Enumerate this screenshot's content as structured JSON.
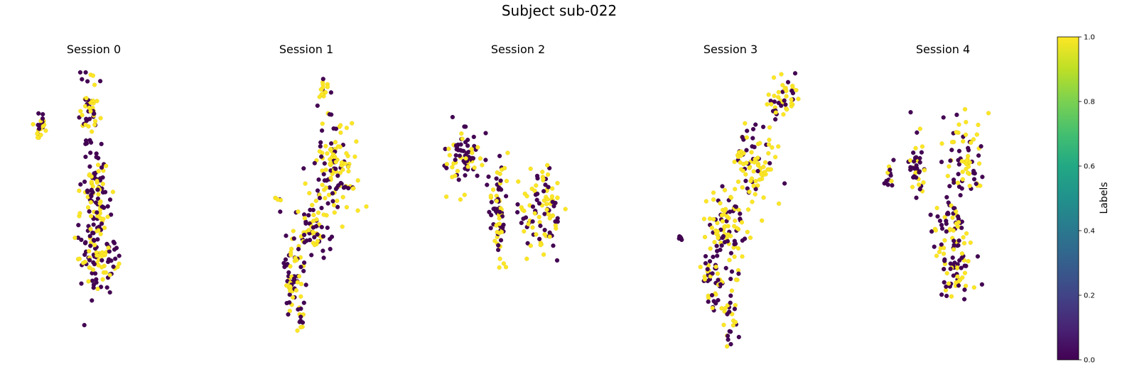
{
  "title": "Subject sub-022",
  "colors": {
    "label_0": "#440154",
    "label_1": "#fde725",
    "edge": "#3b3b3b"
  },
  "colorbar": {
    "label": "Labels",
    "ticks": [
      "0.0",
      "0.2",
      "0.4",
      "0.6",
      "0.8",
      "1.0"
    ],
    "tick_values": [
      0.0,
      0.2,
      0.4,
      0.6,
      0.8,
      1.0
    ],
    "colormap": "viridis"
  },
  "chart_data": [
    {
      "type": "scatter",
      "title": "Session 0",
      "axes": "off",
      "xlim": [
        0,
        10
      ],
      "ylim": [
        0,
        10
      ],
      "clusters": [
        {
          "cx": 1.3,
          "cy": 8.1,
          "sx": 0.22,
          "sy": 0.35,
          "n": 24,
          "yellow": 0.5
        },
        {
          "cx": 4.9,
          "cy": 8.6,
          "sx": 0.45,
          "sy": 0.9,
          "n": 55,
          "yellow": 0.45
        },
        {
          "cx": 5.2,
          "cy": 5.5,
          "sx": 0.6,
          "sy": 1.0,
          "n": 95,
          "yellow": 0.45
        },
        {
          "cx": 5.4,
          "cy": 3.2,
          "sx": 0.9,
          "sy": 0.9,
          "n": 100,
          "yellow": 0.5
        }
      ]
    },
    {
      "type": "scatter",
      "title": "Session 1",
      "axes": "off",
      "xlim": [
        0,
        10
      ],
      "ylim": [
        0,
        10
      ],
      "clusters": [
        {
          "cx": 6.3,
          "cy": 9.3,
          "sx": 0.25,
          "sy": 0.25,
          "n": 16,
          "yellow": 0.75
        },
        {
          "cx": 3.1,
          "cy": 5.3,
          "sx": 0.2,
          "sy": 0.2,
          "n": 6,
          "yellow": 0.6
        },
        {
          "cx": 7.1,
          "cy": 6.6,
          "sx": 1.0,
          "sy": 0.9,
          "n": 120,
          "yellow": 0.5
        },
        {
          "cx": 5.4,
          "cy": 4.3,
          "sx": 0.8,
          "sy": 0.8,
          "n": 70,
          "yellow": 0.5
        },
        {
          "cx": 4.1,
          "cy": 2.5,
          "sx": 0.5,
          "sy": 0.8,
          "n": 60,
          "yellow": 0.55
        },
        {
          "cx": 4.5,
          "cy": 1.1,
          "sx": 0.3,
          "sy": 0.35,
          "n": 14,
          "yellow": 0.5
        }
      ]
    },
    {
      "type": "scatter",
      "title": "Session 2",
      "axes": "off",
      "xlim": [
        0,
        10
      ],
      "ylim": [
        0,
        10
      ],
      "clusters": [
        {
          "cx": 2.0,
          "cy": 6.9,
          "sx": 0.8,
          "sy": 0.7,
          "n": 75,
          "yellow": 0.45
        },
        {
          "cx": 4.6,
          "cy": 4.9,
          "sx": 0.4,
          "sy": 1.1,
          "n": 75,
          "yellow": 0.5
        },
        {
          "cx": 7.5,
          "cy": 5.0,
          "sx": 0.9,
          "sy": 0.9,
          "n": 100,
          "yellow": 0.55
        }
      ]
    },
    {
      "type": "scatter",
      "title": "Session 3",
      "axes": "off",
      "xlim": [
        0,
        10
      ],
      "ylim": [
        0,
        10
      ],
      "clusters": [
        {
          "cx": 8.6,
          "cy": 9.1,
          "sx": 0.6,
          "sy": 0.55,
          "n": 45,
          "yellow": 0.6
        },
        {
          "cx": 6.6,
          "cy": 6.6,
          "sx": 0.9,
          "sy": 1.0,
          "n": 90,
          "yellow": 0.6
        },
        {
          "cx": 4.6,
          "cy": 4.2,
          "sx": 0.9,
          "sy": 1.0,
          "n": 100,
          "yellow": 0.5
        },
        {
          "cx": 3.6,
          "cy": 2.3,
          "sx": 0.5,
          "sy": 0.7,
          "n": 45,
          "yellow": 0.45
        },
        {
          "cx": 4.8,
          "cy": 0.9,
          "sx": 0.4,
          "sy": 0.6,
          "n": 25,
          "yellow": 0.6
        },
        {
          "cx": 1.4,
          "cy": 4.0,
          "sx": 0.12,
          "sy": 0.1,
          "n": 5,
          "yellow": 0.0
        }
      ]
    },
    {
      "type": "scatter",
      "title": "Session 4",
      "axes": "off",
      "xlim": [
        0,
        10
      ],
      "ylim": [
        0,
        10
      ],
      "clusters": [
        {
          "cx": 1.8,
          "cy": 6.3,
          "sx": 0.2,
          "sy": 0.3,
          "n": 14,
          "yellow": 0.3
        },
        {
          "cx": 3.7,
          "cy": 6.5,
          "sx": 0.35,
          "sy": 0.8,
          "n": 40,
          "yellow": 0.55
        },
        {
          "cx": 7.2,
          "cy": 7.0,
          "sx": 0.8,
          "sy": 0.9,
          "n": 70,
          "yellow": 0.55
        },
        {
          "cx": 6.2,
          "cy": 4.5,
          "sx": 0.8,
          "sy": 0.7,
          "n": 60,
          "yellow": 0.4
        },
        {
          "cx": 6.7,
          "cy": 2.8,
          "sx": 0.8,
          "sy": 0.7,
          "n": 60,
          "yellow": 0.5
        }
      ]
    }
  ]
}
